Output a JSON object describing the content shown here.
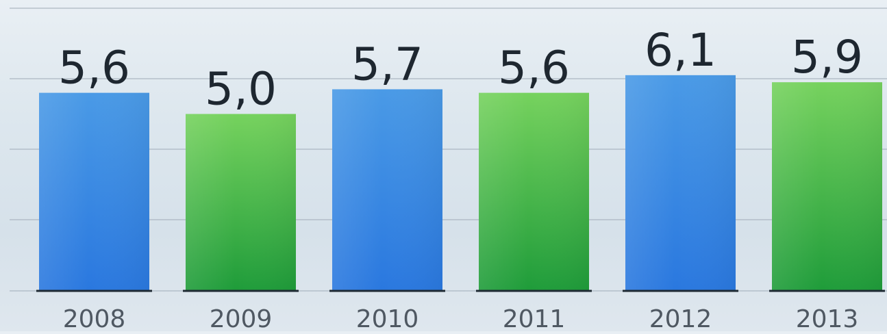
{
  "chart_data": {
    "type": "bar",
    "title": "",
    "xlabel": "",
    "ylabel": "",
    "categories": [
      "2008",
      "2009",
      "2010",
      "2011",
      "2012",
      "2013"
    ],
    "values": [
      5.6,
      5.0,
      5.7,
      5.6,
      6.1,
      5.9
    ],
    "value_labels": [
      "5,6",
      "5,0",
      "5,7",
      "5,6",
      "6,1",
      "5,9"
    ],
    "ylim": [
      0,
      8
    ],
    "grid": true,
    "legend": "none",
    "colors": {
      "blue_top": "#4a9ae6",
      "blue_bottom": "#2a78df",
      "green_top": "#76d25e",
      "green_bottom": "#1f9c3a",
      "gridline": "#a9b4bf",
      "baseline": "#1f2a33",
      "value_text": "#1e2730",
      "tick_text": "#4f5862"
    },
    "bar_colors": [
      "blue",
      "green",
      "blue",
      "green",
      "blue",
      "green"
    ]
  }
}
